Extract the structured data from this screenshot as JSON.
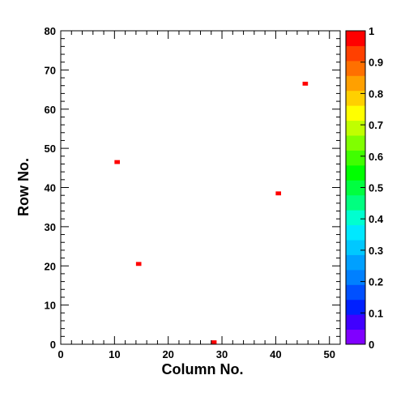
{
  "chart_data": {
    "type": "heatmap",
    "title": "",
    "xlabel": "Column No.",
    "ylabel": "Row No.",
    "xlim": [
      0,
      52
    ],
    "ylim": [
      0,
      80
    ],
    "x_ticks": [
      0,
      10,
      20,
      30,
      40,
      50
    ],
    "y_ticks": [
      0,
      10,
      20,
      30,
      40,
      50,
      60,
      70,
      80
    ],
    "z_range": [
      0,
      1
    ],
    "z_ticks": [
      "0",
      "0.1",
      "0.2",
      "0.3",
      "0.4",
      "0.5",
      "0.6",
      "0.7",
      "0.8",
      "0.9",
      "1"
    ],
    "palette": [
      "#8000ff",
      "#4000ff",
      "#0020ff",
      "#0050ff",
      "#0080ff",
      "#00a0ff",
      "#00c8ff",
      "#00e8ff",
      "#00ffd0",
      "#00ff80",
      "#00ff40",
      "#00ff00",
      "#40ff00",
      "#80ff00",
      "#c0ff00",
      "#ffff00",
      "#ffd000",
      "#ffa000",
      "#ff7000",
      "#ff4000",
      "#ff0000"
    ],
    "cells": [
      {
        "column": 10,
        "row": 46,
        "value": 1
      },
      {
        "column": 14,
        "row": 20,
        "value": 1
      },
      {
        "column": 28,
        "row": 0,
        "value": 1
      },
      {
        "column": 40,
        "row": 38,
        "value": 1
      },
      {
        "column": 45,
        "row": 66,
        "value": 1
      }
    ],
    "grid": false,
    "colorbar": "right"
  }
}
